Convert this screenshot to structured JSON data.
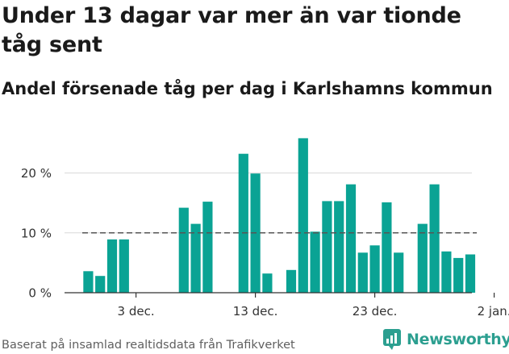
{
  "title": "Under 13 dagar var mer än var tionde tåg sent",
  "subtitle": "Andel försenade tåg per dag i Karlshamns kommun",
  "footer": {
    "source": "Baserat på insamlad realtidsdata från Trafikverket",
    "brand": "Newsworthy",
    "brand_icon": "newsworthy-logo-icon"
  },
  "colors": {
    "bar": "#0aa394",
    "grid": "#d9d9d9",
    "reference_line": "#555555",
    "brand": "#2c9f90"
  },
  "chart_data": {
    "type": "bar",
    "title": "Under 13 dagar var mer än var tionde tåg sent",
    "subtitle": "Andel försenade tåg per dag i Karlshamns kommun",
    "xlabel": "",
    "ylabel": "",
    "x_dates": [
      "2023-11-29",
      "2023-11-30",
      "2023-12-01",
      "2023-12-02",
      "2023-12-03",
      "2023-12-04",
      "2023-12-05",
      "2023-12-06",
      "2023-12-07",
      "2023-12-08",
      "2023-12-09",
      "2023-12-10",
      "2023-12-11",
      "2023-12-12",
      "2023-12-13",
      "2023-12-14",
      "2023-12-15",
      "2023-12-16",
      "2023-12-17",
      "2023-12-18",
      "2023-12-19",
      "2023-12-20",
      "2023-12-21",
      "2023-12-22",
      "2023-12-23",
      "2023-12-24",
      "2023-12-25",
      "2023-12-26",
      "2023-12-27",
      "2023-12-28",
      "2023-12-29",
      "2023-12-30",
      "2023-12-31",
      "2024-01-01",
      "2024-01-02"
    ],
    "values": [
      3.6,
      2.8,
      8.9,
      8.9,
      null,
      null,
      null,
      null,
      14.2,
      11.5,
      15.2,
      null,
      null,
      23.2,
      19.9,
      3.2,
      null,
      3.8,
      25.8,
      10.2,
      15.3,
      15.3,
      18.1,
      6.7,
      7.9,
      15.1,
      6.7,
      null,
      11.5,
      18.1,
      6.9,
      5.8,
      6.4,
      null,
      null
    ],
    "x_ticks": [
      {
        "date": "2023-12-03",
        "label": "3 dec."
      },
      {
        "date": "2023-12-13",
        "label": "13 dec."
      },
      {
        "date": "2023-12-23",
        "label": "23 dec."
      },
      {
        "date": "2024-01-02",
        "label": "2 jan."
      }
    ],
    "y_ticks": [
      {
        "value": 0,
        "label": "0 %"
      },
      {
        "value": 10,
        "label": "10 %"
      },
      {
        "value": 20,
        "label": "20 %"
      }
    ],
    "ylim": [
      0,
      28
    ],
    "reference_line": {
      "value": 10,
      "style": "dashed"
    },
    "grid": true,
    "unit": "%"
  }
}
